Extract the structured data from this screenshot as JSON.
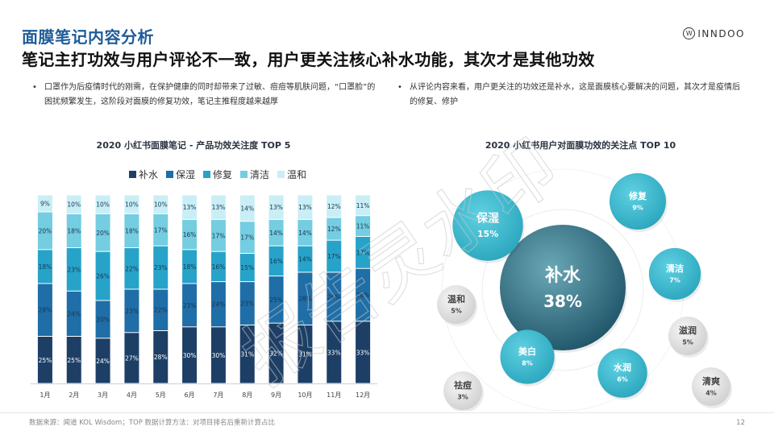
{
  "header": {
    "section_title": "面膜笔记内容分析",
    "headline": "笔记主打功效与用户评论不一致，用户更关注核心补水功能，其次才是其他功效",
    "brand": "INNDOO",
    "brand_mark": "W"
  },
  "bullets": {
    "left": "口罩作为后疫情时代的刚需，在保护健康的同时却带来了过敏、痘痘等肌肤问题，“口罩脸”的困扰频繁发生，这阶段对面膜的修复功效，笔记主推程度越来越厚",
    "right": "从评论内容来看，用户更关注的功效还是补水，这是面膜核心要解决的问题，其次才是疫情后的修复、修护"
  },
  "footer": {
    "source": "数据来源：闻道 KOL Wisdom；TOP 数据计算方法：对项目排名后重新计算占比",
    "page": "12"
  },
  "watermark": "报告灵水印",
  "colors": {
    "title_blue": "#1f5c99",
    "series": [
      "#1d3f66",
      "#1f6ea7",
      "#27a3c9",
      "#74cde0",
      "#c9eef6"
    ]
  },
  "chart_data": [
    {
      "type": "bar",
      "stacked": true,
      "title": "2020 小红书面膜笔记 - 产品功效关注度 TOP 5",
      "legend_position": "top",
      "categories": [
        "1月",
        "2月",
        "3月",
        "4月",
        "5月",
        "6月",
        "7月",
        "8月",
        "9月",
        "10月",
        "11月",
        "12月"
      ],
      "series": [
        {
          "name": "补水",
          "values": [
            25,
            25,
            24,
            27,
            28,
            30,
            30,
            31,
            32,
            31,
            33,
            33
          ]
        },
        {
          "name": "保湿",
          "values": [
            28,
            24,
            20,
            23,
            22,
            23,
            24,
            23,
            25,
            28,
            26,
            28
          ]
        },
        {
          "name": "修复",
          "values": [
            18,
            23,
            26,
            22,
            23,
            18,
            16,
            15,
            16,
            14,
            17,
            17
          ]
        },
        {
          "name": "清洁",
          "values": [
            20,
            18,
            20,
            18,
            17,
            16,
            17,
            17,
            14,
            14,
            12,
            11
          ]
        },
        {
          "name": "温和",
          "values": [
            9,
            10,
            10,
            10,
            10,
            13,
            13,
            14,
            13,
            13,
            12,
            11
          ]
        }
      ],
      "value_suffix": "%",
      "ylim": [
        0,
        100
      ]
    },
    {
      "type": "bubble",
      "title": "2020 小红书用户对面膜功效的关注点 TOP 10",
      "items": [
        {
          "name": "补水",
          "value": 38
        },
        {
          "name": "保湿",
          "value": 15
        },
        {
          "name": "修复",
          "value": 9
        },
        {
          "name": "美白",
          "value": 8
        },
        {
          "name": "清洁",
          "value": 7
        },
        {
          "name": "水润",
          "value": 6
        },
        {
          "name": "温和",
          "value": 5
        },
        {
          "name": "滋润",
          "value": 5
        },
        {
          "name": "清爽",
          "value": 4
        },
        {
          "name": "祛痘",
          "value": 3
        }
      ],
      "value_suffix": "%"
    }
  ]
}
